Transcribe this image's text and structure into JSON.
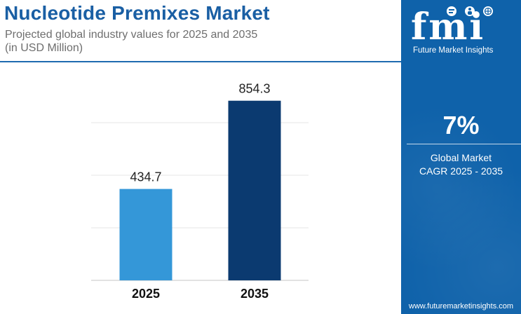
{
  "header": {
    "title": "Nucleotide Premixes Market",
    "subtitle_line1": "Projected global industry values for 2025 and 2035",
    "subtitle_line2": "(in USD Million)"
  },
  "colors": {
    "title": "#1a5fa4",
    "sidebar": "#0f62aa",
    "bar_2025": "#3497d8",
    "bar_2035": "#0b3a70"
  },
  "chart_data": {
    "type": "bar",
    "title": "Nucleotide Premixes Market",
    "categories": [
      "2025",
      "2035"
    ],
    "values": [
      434.7,
      854.3
    ],
    "data_labels": [
      "434.7",
      "854.3"
    ],
    "bar_colors": [
      "#3497d8",
      "#0b3a70"
    ],
    "ylim": [
      0,
      1000
    ],
    "gridlines": [
      0,
      250,
      500,
      750
    ],
    "grid": true,
    "xlabel": "",
    "ylabel": ""
  },
  "sidebar": {
    "logo_letters": "fmi",
    "logo_tagline": "Future Market Insights",
    "logo_icons": [
      "chat-bubble-icon",
      "person-icon",
      "globe-icon"
    ],
    "cagr_value": "7%",
    "cagr_label_line1": "Global Market",
    "cagr_label_line2": "CAGR 2025 - 2035",
    "website": "www.futuremarketinsights.com"
  }
}
